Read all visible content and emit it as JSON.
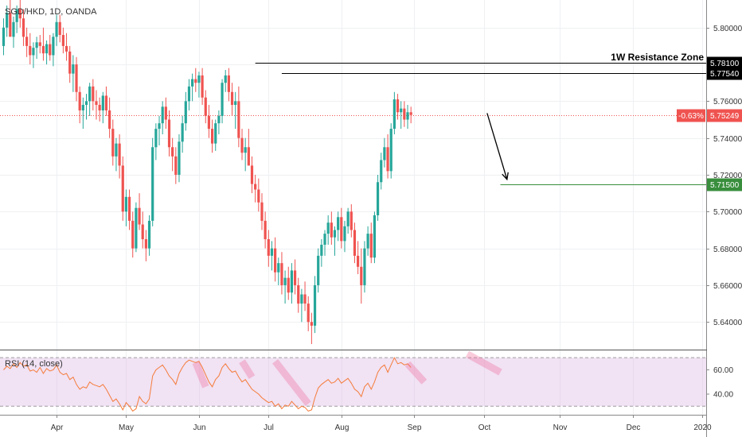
{
  "chart_data": {
    "type": "candlestick",
    "title": "SGD/HKD, 1D, OANDA",
    "price_axis": {
      "min": 5.625,
      "max": 5.815,
      "ticks": [
        "5.80000",
        "5.78000",
        "5.76000",
        "5.74000",
        "5.72000",
        "5.70000",
        "5.68000",
        "5.66000",
        "5.64000"
      ],
      "tick_values": [
        5.8,
        5.78,
        5.76,
        5.74,
        5.72,
        5.7,
        5.68,
        5.66,
        5.64
      ]
    },
    "time_axis": {
      "labels": [
        "Apr",
        "May",
        "Jun",
        "Jul",
        "Aug",
        "Sep",
        "Oct",
        "Nov",
        "Dec",
        "2020"
      ],
      "label_bar_index": [
        16,
        37,
        59,
        80,
        102,
        124,
        145,
        168,
        190,
        211
      ]
    },
    "candles_ohlc": [
      [
        5.79,
        5.805,
        5.785,
        5.8
      ],
      [
        5.8,
        5.812,
        5.795,
        5.808
      ],
      [
        5.808,
        5.815,
        5.8,
        5.795
      ],
      [
        5.795,
        5.806,
        5.789,
        5.803
      ],
      [
        5.803,
        5.812,
        5.797,
        5.81
      ],
      [
        5.81,
        5.815,
        5.8,
        5.805
      ],
      [
        5.805,
        5.81,
        5.79,
        5.795
      ],
      [
        5.795,
        5.8,
        5.784,
        5.79
      ],
      [
        5.79,
        5.797,
        5.78,
        5.785
      ],
      [
        5.785,
        5.792,
        5.778,
        5.789
      ],
      [
        5.789,
        5.795,
        5.783,
        5.792
      ],
      [
        5.792,
        5.796,
        5.786,
        5.79
      ],
      [
        5.79,
        5.8,
        5.782,
        5.786
      ],
      [
        5.786,
        5.793,
        5.78,
        5.791
      ],
      [
        5.791,
        5.796,
        5.782,
        5.785
      ],
      [
        5.785,
        5.797,
        5.779,
        5.795
      ],
      [
        5.795,
        5.807,
        5.79,
        5.803
      ],
      [
        5.803,
        5.807,
        5.792,
        5.796
      ],
      [
        5.796,
        5.8,
        5.786,
        5.79
      ],
      [
        5.79,
        5.797,
        5.782,
        5.787
      ],
      [
        5.787,
        5.79,
        5.77,
        5.775
      ],
      [
        5.775,
        5.785,
        5.765,
        5.78
      ],
      [
        5.78,
        5.784,
        5.76,
        5.765
      ],
      [
        5.765,
        5.768,
        5.748,
        5.755
      ],
      [
        5.755,
        5.762,
        5.745,
        5.758
      ],
      [
        5.758,
        5.764,
        5.75,
        5.76
      ],
      [
        5.76,
        5.77,
        5.752,
        5.768
      ],
      [
        5.768,
        5.772,
        5.755,
        5.76
      ],
      [
        5.76,
        5.766,
        5.75,
        5.758
      ],
      [
        5.758,
        5.762,
        5.749,
        5.755
      ],
      [
        5.755,
        5.765,
        5.748,
        5.763
      ],
      [
        5.763,
        5.768,
        5.752,
        5.755
      ],
      [
        5.755,
        5.762,
        5.74,
        5.745
      ],
      [
        5.745,
        5.75,
        5.725,
        5.73
      ],
      [
        5.73,
        5.74,
        5.722,
        5.737
      ],
      [
        5.737,
        5.742,
        5.718,
        5.725
      ],
      [
        5.725,
        5.73,
        5.695,
        5.7
      ],
      [
        5.7,
        5.712,
        5.692,
        5.708
      ],
      [
        5.708,
        5.712,
        5.69,
        5.695
      ],
      [
        5.695,
        5.7,
        5.675,
        5.68
      ],
      [
        5.68,
        5.705,
        5.678,
        5.702
      ],
      [
        5.702,
        5.71,
        5.69,
        5.693
      ],
      [
        5.693,
        5.7,
        5.68,
        5.685
      ],
      [
        5.685,
        5.69,
        5.673,
        5.68
      ],
      [
        5.68,
        5.698,
        5.676,
        5.695
      ],
      [
        5.695,
        5.74,
        5.692,
        5.735
      ],
      [
        5.735,
        5.748,
        5.728,
        5.745
      ],
      [
        5.745,
        5.752,
        5.736,
        5.748
      ],
      [
        5.748,
        5.76,
        5.742,
        5.757
      ],
      [
        5.757,
        5.762,
        5.745,
        5.75
      ],
      [
        5.75,
        5.755,
        5.73,
        5.735
      ],
      [
        5.735,
        5.74,
        5.722,
        5.73
      ],
      [
        5.73,
        5.735,
        5.715,
        5.72
      ],
      [
        5.72,
        5.742,
        5.716,
        5.738
      ],
      [
        5.738,
        5.752,
        5.732,
        5.748
      ],
      [
        5.748,
        5.765,
        5.744,
        5.76
      ],
      [
        5.76,
        5.772,
        5.755,
        5.768
      ],
      [
        5.768,
        5.775,
        5.76,
        5.772
      ],
      [
        5.772,
        5.778,
        5.765,
        5.77
      ],
      [
        5.77,
        5.776,
        5.762,
        5.774
      ],
      [
        5.774,
        5.778,
        5.758,
        5.762
      ],
      [
        5.762,
        5.766,
        5.748,
        5.752
      ],
      [
        5.752,
        5.758,
        5.74,
        5.745
      ],
      [
        5.745,
        5.75,
        5.732,
        5.737
      ],
      [
        5.737,
        5.75,
        5.733,
        5.748
      ],
      [
        5.748,
        5.755,
        5.742,
        5.752
      ],
      [
        5.752,
        5.772,
        5.748,
        5.77
      ],
      [
        5.77,
        5.777,
        5.765,
        5.774
      ],
      [
        5.774,
        5.778,
        5.76,
        5.765
      ],
      [
        5.765,
        5.77,
        5.752,
        5.758
      ],
      [
        5.758,
        5.765,
        5.745,
        5.76
      ],
      [
        5.76,
        5.768,
        5.735,
        5.74
      ],
      [
        5.74,
        5.745,
        5.728,
        5.732
      ],
      [
        5.732,
        5.74,
        5.722,
        5.735
      ],
      [
        5.735,
        5.745,
        5.728,
        5.725
      ],
      [
        5.725,
        5.73,
        5.71,
        5.715
      ],
      [
        5.715,
        5.72,
        5.705,
        5.712
      ],
      [
        5.712,
        5.718,
        5.7,
        5.705
      ],
      [
        5.705,
        5.71,
        5.69,
        5.695
      ],
      [
        5.695,
        5.7,
        5.68,
        5.685
      ],
      [
        5.685,
        5.69,
        5.67,
        5.676
      ],
      [
        5.676,
        5.684,
        5.668,
        5.68
      ],
      [
        5.68,
        5.686,
        5.662,
        5.667
      ],
      [
        5.667,
        5.675,
        5.66,
        5.672
      ],
      [
        5.672,
        5.678,
        5.655,
        5.66
      ],
      [
        5.66,
        5.668,
        5.65,
        5.664
      ],
      [
        5.664,
        5.67,
        5.652,
        5.656
      ],
      [
        5.656,
        5.672,
        5.65,
        5.668
      ],
      [
        5.668,
        5.674,
        5.655,
        5.66
      ],
      [
        5.66,
        5.664,
        5.645,
        5.65
      ],
      [
        5.65,
        5.658,
        5.64,
        5.655
      ],
      [
        5.655,
        5.662,
        5.646,
        5.65
      ],
      [
        5.65,
        5.654,
        5.635,
        5.64
      ],
      [
        5.64,
        5.645,
        5.628,
        5.638
      ],
      [
        5.638,
        5.665,
        5.634,
        5.66
      ],
      [
        5.66,
        5.68,
        5.656,
        5.676
      ],
      [
        5.676,
        5.685,
        5.67,
        5.682
      ],
      [
        5.682,
        5.69,
        5.676,
        5.688
      ],
      [
        5.688,
        5.698,
        5.682,
        5.694
      ],
      [
        5.694,
        5.7,
        5.682,
        5.686
      ],
      [
        5.686,
        5.692,
        5.676,
        5.69
      ],
      [
        5.69,
        5.7,
        5.684,
        5.697
      ],
      [
        5.697,
        5.702,
        5.68,
        5.684
      ],
      [
        5.684,
        5.695,
        5.678,
        5.692
      ],
      [
        5.692,
        5.702,
        5.688,
        5.7
      ],
      [
        5.7,
        5.704,
        5.686,
        5.69
      ],
      [
        5.69,
        5.694,
        5.672,
        5.676
      ],
      [
        5.676,
        5.684,
        5.666,
        5.67
      ],
      [
        5.67,
        5.68,
        5.65,
        5.66
      ],
      [
        5.66,
        5.684,
        5.656,
        5.68
      ],
      [
        5.68,
        5.692,
        5.676,
        5.688
      ],
      [
        5.688,
        5.694,
        5.672,
        5.675
      ],
      [
        5.675,
        5.7,
        5.672,
        5.698
      ],
      [
        5.698,
        5.72,
        5.695,
        5.716
      ],
      [
        5.716,
        5.732,
        5.712,
        5.728
      ],
      [
        5.728,
        5.74,
        5.724,
        5.735
      ],
      [
        5.735,
        5.742,
        5.718,
        5.722
      ],
      [
        5.722,
        5.748,
        5.718,
        5.745
      ],
      [
        5.745,
        5.765,
        5.742,
        5.761
      ],
      [
        5.761,
        5.764,
        5.75,
        5.754
      ],
      [
        5.754,
        5.76,
        5.745,
        5.756
      ],
      [
        5.756,
        5.76,
        5.746,
        5.75
      ],
      [
        5.75,
        5.758,
        5.745,
        5.754
      ],
      [
        5.754,
        5.757,
        5.748,
        5.7525
      ]
    ],
    "horizontal_lines": [
      {
        "label": "5.78100",
        "value": 5.781,
        "color": "#000000"
      },
      {
        "label": "5.77540",
        "value": 5.7754,
        "color": "#000000"
      },
      {
        "label": "5.71500",
        "value": 5.715,
        "color": "#388e3c"
      }
    ],
    "annotation": "1W Resistance Zone",
    "current_price": {
      "value": 5.75249,
      "label": "5.75249",
      "change": "-0.63%"
    },
    "rsi": {
      "title": "RSI (14, close)",
      "upper": 70,
      "lower": 30,
      "min": 23,
      "max": 76,
      "ticks": [
        "60.00",
        "40.00"
      ],
      "tick_values": [
        60,
        40
      ],
      "values": [
        60,
        63,
        61,
        65,
        62,
        66,
        63,
        64,
        59,
        60,
        58,
        62,
        57,
        61,
        59,
        60,
        64,
        58,
        56,
        57,
        52,
        54,
        48,
        44,
        46,
        45,
        50,
        48,
        47,
        46,
        48,
        44,
        39,
        34,
        36,
        32,
        27,
        33,
        30,
        26,
        28,
        38,
        34,
        32,
        36,
        55,
        60,
        62,
        64,
        60,
        55,
        52,
        48,
        57,
        62,
        66,
        68,
        67,
        66,
        67,
        62,
        56,
        50,
        46,
        52,
        55,
        62,
        65,
        61,
        58,
        59,
        54,
        50,
        52,
        48,
        44,
        42,
        40,
        37,
        35,
        33,
        34,
        30,
        32,
        28,
        31,
        30,
        34,
        31,
        28,
        30,
        29,
        26,
        27,
        37,
        45,
        48,
        50,
        52,
        49,
        50,
        53,
        49,
        51,
        53,
        49,
        44,
        42,
        38,
        46,
        49,
        44,
        50,
        58,
        62,
        64,
        58,
        64,
        70,
        65,
        66,
        64,
        65,
        62
      ],
      "trend_strokes": [
        {
          "from": [
            58,
            66
          ],
          "to": [
            61,
            46
          ]
        },
        {
          "from": [
            72,
            67
          ],
          "to": [
            75,
            54
          ]
        },
        {
          "from": [
            82,
            67
          ],
          "to": [
            92,
            32
          ]
        },
        {
          "from": [
            122,
            65
          ],
          "to": [
            127,
            50
          ]
        },
        {
          "from": [
            140,
            73
          ],
          "to": [
            150,
            58
          ]
        }
      ]
    },
    "projection_arrow": {
      "from": [
        146,
        5.7535
      ],
      "to": [
        152,
        5.7175
      ]
    },
    "colors": {
      "up": "#26a69a",
      "down": "#ef5350",
      "rsi_line": "#f57c3a",
      "rsi_band": "#e1bee7",
      "tag_red": "#ef5350",
      "line_green": "#388e3c"
    }
  }
}
